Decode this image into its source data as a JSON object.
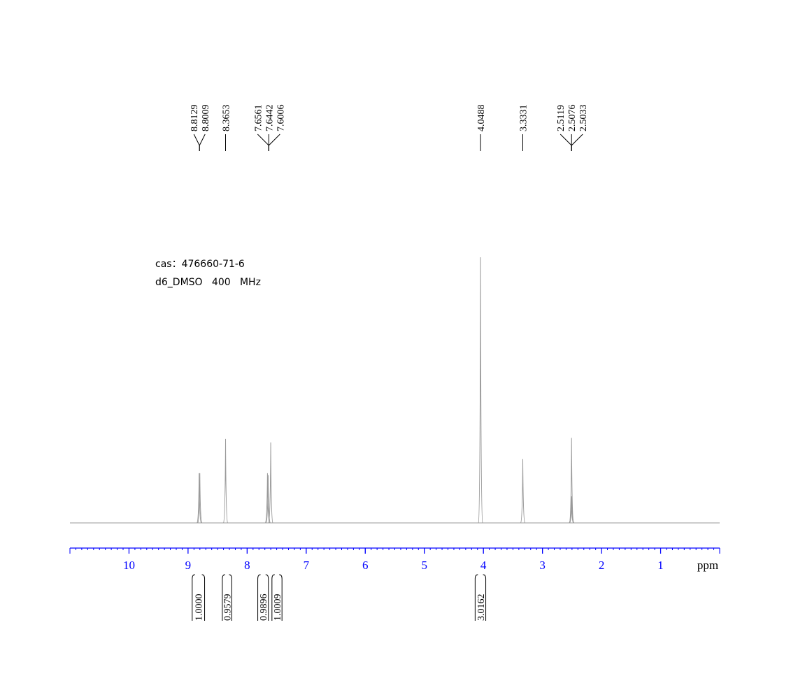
{
  "chart_data": {
    "type": "nmr",
    "annotations": [
      "cas：476660-71-6",
      "d6_DMSO   400   MHz"
    ],
    "xlabel": "ppm",
    "xlim": [
      11,
      0
    ],
    "xticks": [
      10,
      9,
      8,
      7,
      6,
      5,
      4,
      3,
      2,
      1
    ],
    "ylim": [
      0,
      100
    ],
    "color": "#999999",
    "axis_color": "#0000ff",
    "x": [
      8.8129,
      8.8009,
      8.3653,
      7.6561,
      7.6442,
      7.6006,
      4.0488,
      3.3331,
      2.5119,
      2.5076,
      2.5033
    ],
    "values": [
      18.7,
      18.7,
      31.6,
      18.7,
      18.0,
      30.3,
      100,
      24,
      10,
      32,
      10
    ],
    "peak_label_groups": [
      [
        8.8129,
        8.8009
      ],
      [
        8.3653
      ],
      [
        7.6561,
        7.6442,
        7.6006
      ],
      [
        4.0488
      ],
      [
        3.3331
      ],
      [
        2.5119,
        2.5076,
        2.5033
      ]
    ],
    "integrals": [
      {
        "value": 1,
        "label": "1.0000",
        "range": [
          8.93,
          8.72
        ]
      },
      {
        "value": 0.9579,
        "range": [
          8.42,
          8.26
        ]
      },
      {
        "value": 0.9896,
        "range": [
          7.82,
          7.64
        ]
      },
      {
        "value": 1.0009,
        "range": [
          7.58,
          7.41
        ]
      },
      {
        "value": 3.0162,
        "range": [
          4.14,
          3.96
        ]
      }
    ]
  }
}
